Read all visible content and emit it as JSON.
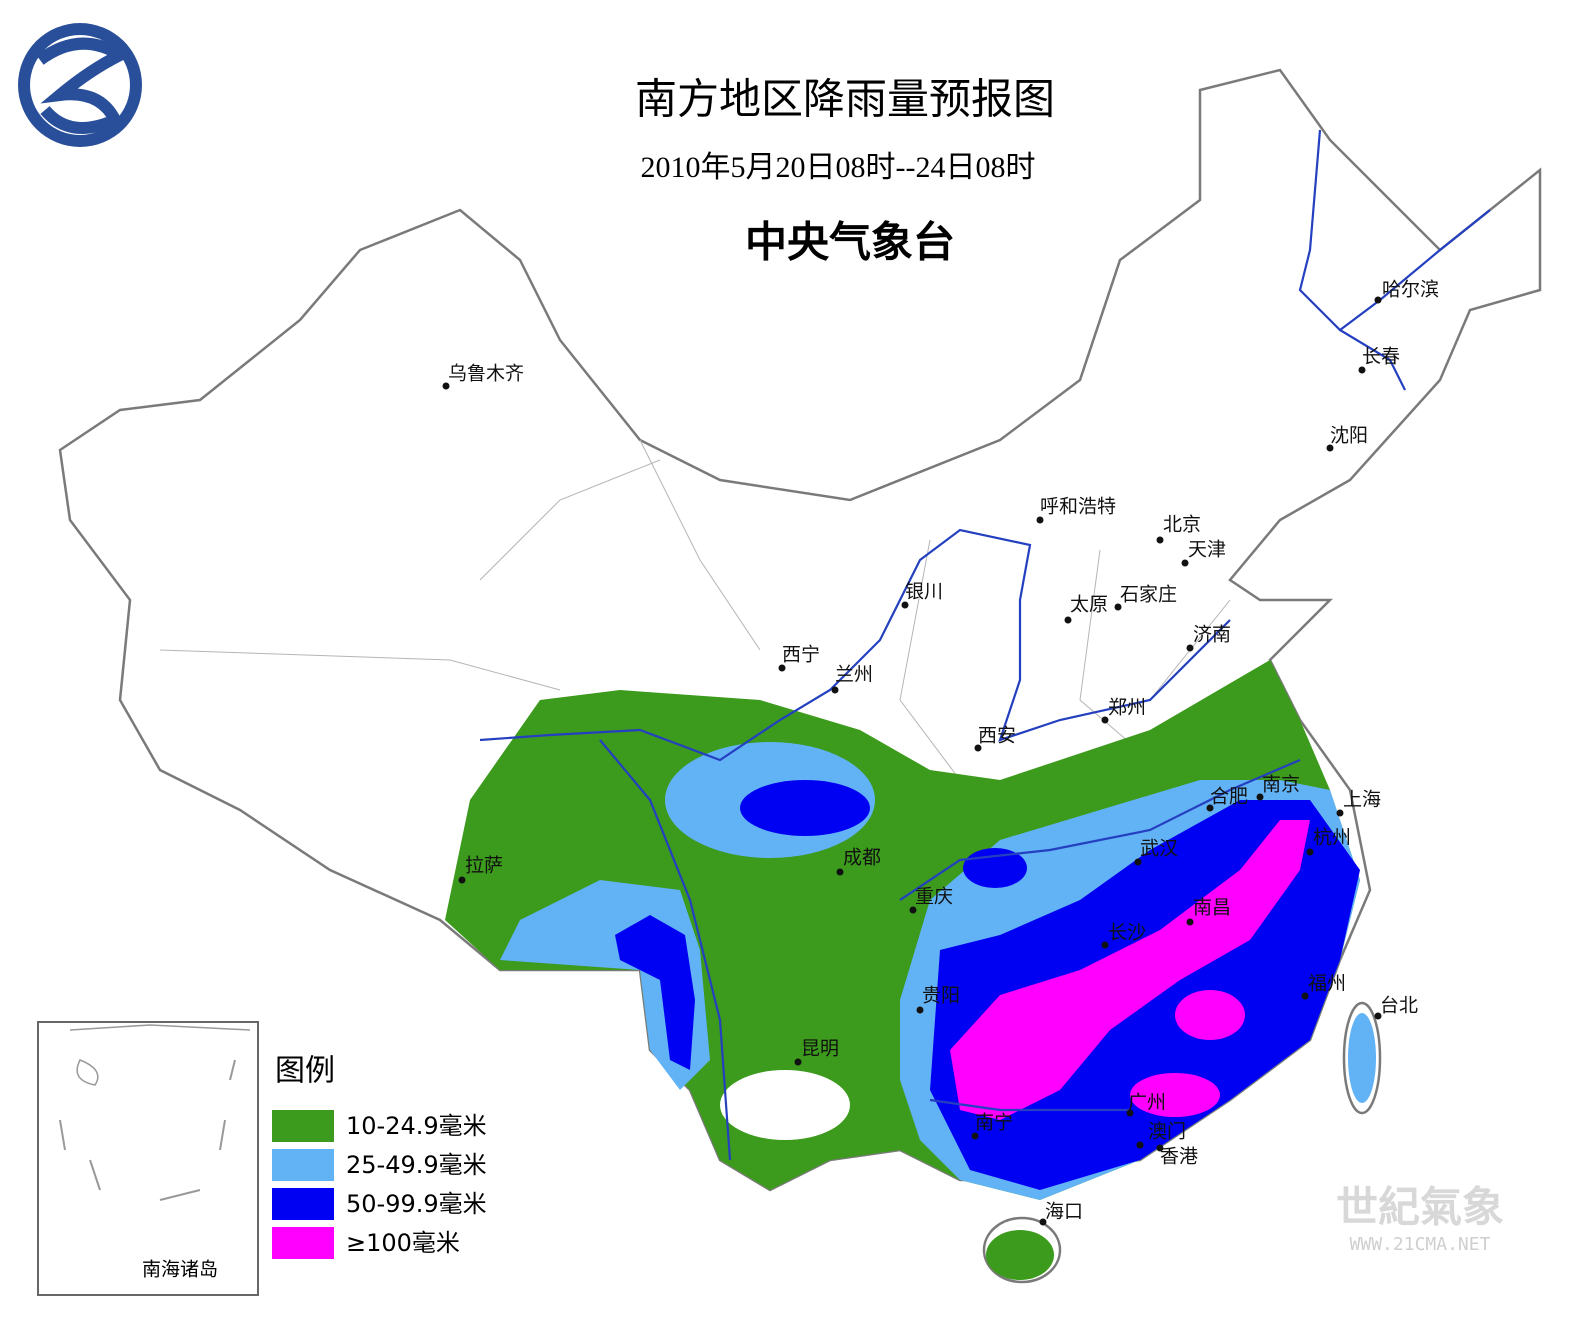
{
  "header": {
    "title": "南方地区降雨量预报图",
    "subtitle": "2010年5月20日08时--24日08时",
    "agency": "中央气象台"
  },
  "cities": [
    "乌鲁木齐",
    "哈尔滨",
    "长春",
    "沈阳",
    "呼和浩特",
    "北京",
    "天津",
    "银川",
    "太原",
    "石家庄",
    "济南",
    "西宁",
    "兰州",
    "郑州",
    "西安",
    "南京",
    "合肥",
    "上海",
    "拉萨",
    "成都",
    "武汉",
    "杭州",
    "重庆",
    "南昌",
    "长沙",
    "贵阳",
    "福州",
    "台北",
    "昆明",
    "广州",
    "南宁",
    "澳门",
    "香港",
    "海口"
  ],
  "legend": {
    "title": "图例",
    "items": [
      {
        "label": "10-24.9毫米",
        "color": "#3c9a1c"
      },
      {
        "label": "25-49.9毫米",
        "color": "#62b2f6"
      },
      {
        "label": "50-99.9毫米",
        "color": "#0000f2"
      },
      {
        "label": "≥100毫米",
        "color": "#ff00ff"
      }
    ]
  },
  "inset": {
    "label": "南海诸岛"
  },
  "watermark": {
    "text": "世紀氣象",
    "url": "WWW.21CMA.NET"
  }
}
